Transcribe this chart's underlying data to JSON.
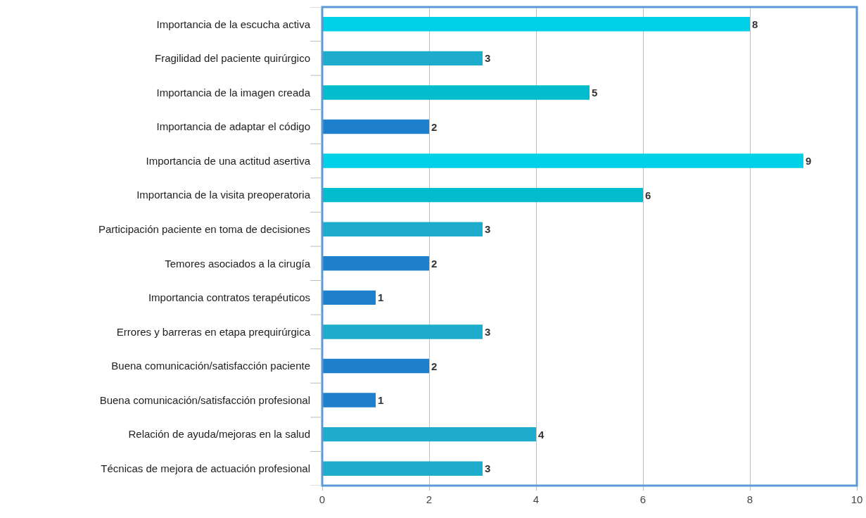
{
  "chart_data": {
    "type": "bar",
    "orientation": "horizontal",
    "categories": [
      "Importancia de la escucha activa",
      "Fragilidad del paciente quirúrgico",
      "Importancia de la imagen creada",
      "Importancia de adaptar el código",
      "Importancia de una actitud asertiva",
      "Importancia de la visita preoperatoria",
      "Participación paciente en toma de decisiones",
      "Temores asociados a la cirugía",
      "Importancia contratos terapéuticos",
      "Errores y barreras en etapa prequirúrgica",
      "Buena comunicación/satisfacción paciente",
      "Buena comunicación/satisfacción profesional",
      "Relación de ayuda/mejoras en la salud",
      "Técnicas de mejora de actuación profesional"
    ],
    "values": [
      8,
      3,
      5,
      2,
      9,
      6,
      3,
      2,
      1,
      3,
      2,
      1,
      4,
      3
    ],
    "colors": [
      "#00d0e8",
      "#1eaccc",
      "#00bccc",
      "#1e80cc",
      "#00d0e8",
      "#00bccc",
      "#1eaccc",
      "#1e80cc",
      "#1e80cc",
      "#1eaccc",
      "#1e80cc",
      "#1e80cc",
      "#1eaccc",
      "#1eaccc"
    ],
    "xlim": [
      0,
      10
    ],
    "xticks": [
      0,
      2,
      4,
      6,
      8,
      10
    ],
    "grid": "x",
    "data_labels": true
  }
}
